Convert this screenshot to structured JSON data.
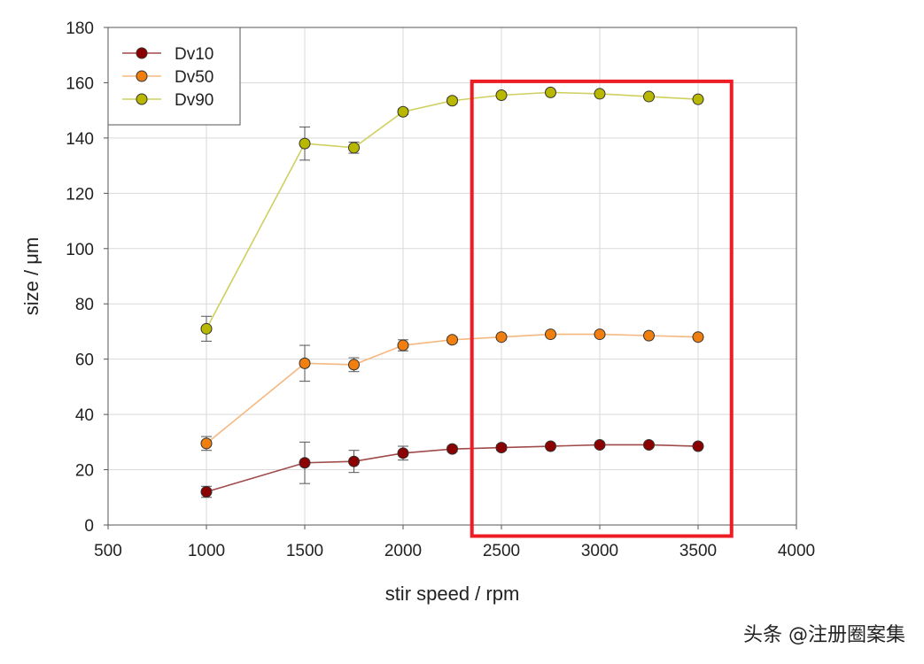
{
  "chart_data": {
    "type": "line",
    "xlabel": "stir speed / rpm",
    "ylabel": "size / μm",
    "xlim": [
      500,
      4000
    ],
    "ylim": [
      0,
      180
    ],
    "xticks": [
      500,
      1000,
      1500,
      2000,
      2500,
      3000,
      3500,
      4000
    ],
    "yticks": [
      0,
      20,
      40,
      60,
      80,
      100,
      120,
      140,
      160,
      180
    ],
    "grid": true,
    "legend_position": "top-left",
    "x": [
      1000,
      1500,
      1750,
      2000,
      2250,
      2500,
      2750,
      3000,
      3250,
      3500
    ],
    "series": [
      {
        "name": "Dv10",
        "color": "#8b0000",
        "line_color": "#a04a4a",
        "values": [
          12,
          22.5,
          23,
          26,
          27.5,
          28,
          28.5,
          29,
          29,
          28.5
        ],
        "errors": [
          2,
          7.5,
          4,
          2.5,
          1,
          1,
          0.5,
          0.5,
          0.5,
          0.5
        ]
      },
      {
        "name": "Dv50",
        "color": "#f07f10",
        "line_color": "#f5b880",
        "values": [
          29.5,
          58.5,
          58,
          65,
          67,
          68,
          69,
          69,
          68.5,
          68
        ],
        "errors": [
          2.5,
          6.5,
          2.5,
          2,
          1,
          0.5,
          0.5,
          0.5,
          0.5,
          0.5
        ]
      },
      {
        "name": "Dv90",
        "color": "#b8b800",
        "line_color": "#d0d060",
        "values": [
          71,
          138,
          136.5,
          149.5,
          153.5,
          155.5,
          156.5,
          156,
          155,
          154
        ],
        "errors": [
          4.5,
          6,
          2,
          1,
          1,
          0.5,
          0.5,
          0.5,
          0.5,
          0.5
        ]
      }
    ],
    "highlight": {
      "x_range": [
        2350,
        3670
      ],
      "y_range": [
        -4,
        160.5
      ],
      "color": "#ee1c25"
    }
  },
  "watermark": {
    "text": "头条 @注册圈案集"
  }
}
